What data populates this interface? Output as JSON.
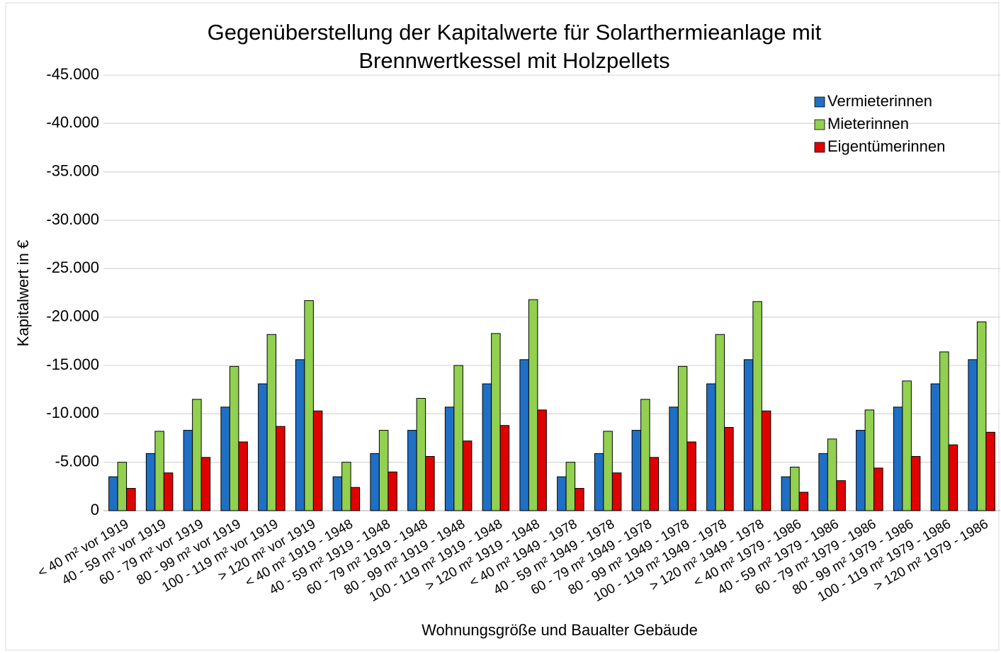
{
  "chart_data": {
    "type": "bar",
    "title": [
      "Gegenüberstellung der Kapitalwerte für Solarthermieanlage mit",
      "Brennwertkessel mit Holzpellets"
    ],
    "y_label": "Kapitalwert in €",
    "x_label": "Wohnungsgröße und Baualter Gebäude",
    "categories": [
      "< 40 m² vor 1919",
      "40 - 59 m² vor 1919",
      "60 - 79 m² vor 1919",
      "80 - 99 m² vor 1919",
      "100 - 119 m² vor 1919",
      "> 120 m² vor 1919",
      "< 40 m² 1919 - 1948",
      "40 - 59 m² 1919 - 1948",
      "60 - 79 m² 1919 - 1948",
      "80 - 99 m² 1919 - 1948",
      "100 - 119 m² 1919 - 1948",
      "> 120 m² 1919 - 1948",
      "< 40 m² 1949 - 1978",
      "40 - 59 m² 1949 - 1978",
      "60 - 79 m² 1949 - 1978",
      "80 - 99 m² 1949 - 1978",
      "100 - 119 m² 1949 - 1978",
      "> 120 m² 1949 - 1978",
      "< 40 m² 1979 - 1986",
      "40 - 59 m² 1979 - 1986",
      "60 - 79 m² 1979 - 1986",
      "80 - 99 m² 1979 - 1986",
      "100 - 119 m² 1979 - 1986",
      "> 120 m² 1979 - 1986"
    ],
    "series": [
      {
        "name": "Vermieterinnen",
        "color": "#1f6fc5",
        "values": [
          -3500,
          -5900,
          -8300,
          -10700,
          -13100,
          -15600,
          -3500,
          -5900,
          -8300,
          -10700,
          -13100,
          -15600,
          -3500,
          -5900,
          -8300,
          -10700,
          -13100,
          -15600,
          -3500,
          -5900,
          -8300,
          -10700,
          -13100,
          -15600
        ]
      },
      {
        "name": "Mieterinnen",
        "color": "#92d050",
        "values": [
          -5000,
          -8200,
          -11500,
          -14900,
          -18200,
          -21700,
          -5000,
          -8300,
          -11600,
          -15000,
          -18300,
          -21800,
          -5000,
          -8200,
          -11500,
          -14900,
          -18200,
          -21600,
          -4500,
          -7400,
          -10400,
          -13400,
          -16400,
          -19500
        ]
      },
      {
        "name": "Eigentümerinnen",
        "color": "#e00000",
        "values": [
          -2300,
          -3900,
          -5500,
          -7100,
          -8700,
          -10300,
          -2400,
          -4000,
          -5600,
          -7200,
          -8800,
          -10400,
          -2300,
          -3900,
          -5500,
          -7100,
          -8600,
          -10300,
          -1900,
          -3100,
          -4400,
          -5600,
          -6800,
          -8100
        ]
      }
    ],
    "ylim": [
      0,
      -45000
    ],
    "yticks": [
      0,
      {
        "value": -5000,
        "label": "-5.000"
      },
      {
        "value": -10000,
        "label": "-10.000"
      },
      {
        "value": -15000,
        "label": "-15.000"
      },
      {
        "value": -20000,
        "label": "-20.000"
      },
      {
        "value": -25000,
        "label": "-25.000"
      },
      {
        "value": -30000,
        "label": "-30.000"
      },
      {
        "value": -35000,
        "label": "-35.000"
      },
      {
        "value": -40000,
        "label": "-40.000"
      },
      {
        "value": -45000,
        "label": "-45.000"
      }
    ],
    "grid": true,
    "legend": "top-right"
  }
}
